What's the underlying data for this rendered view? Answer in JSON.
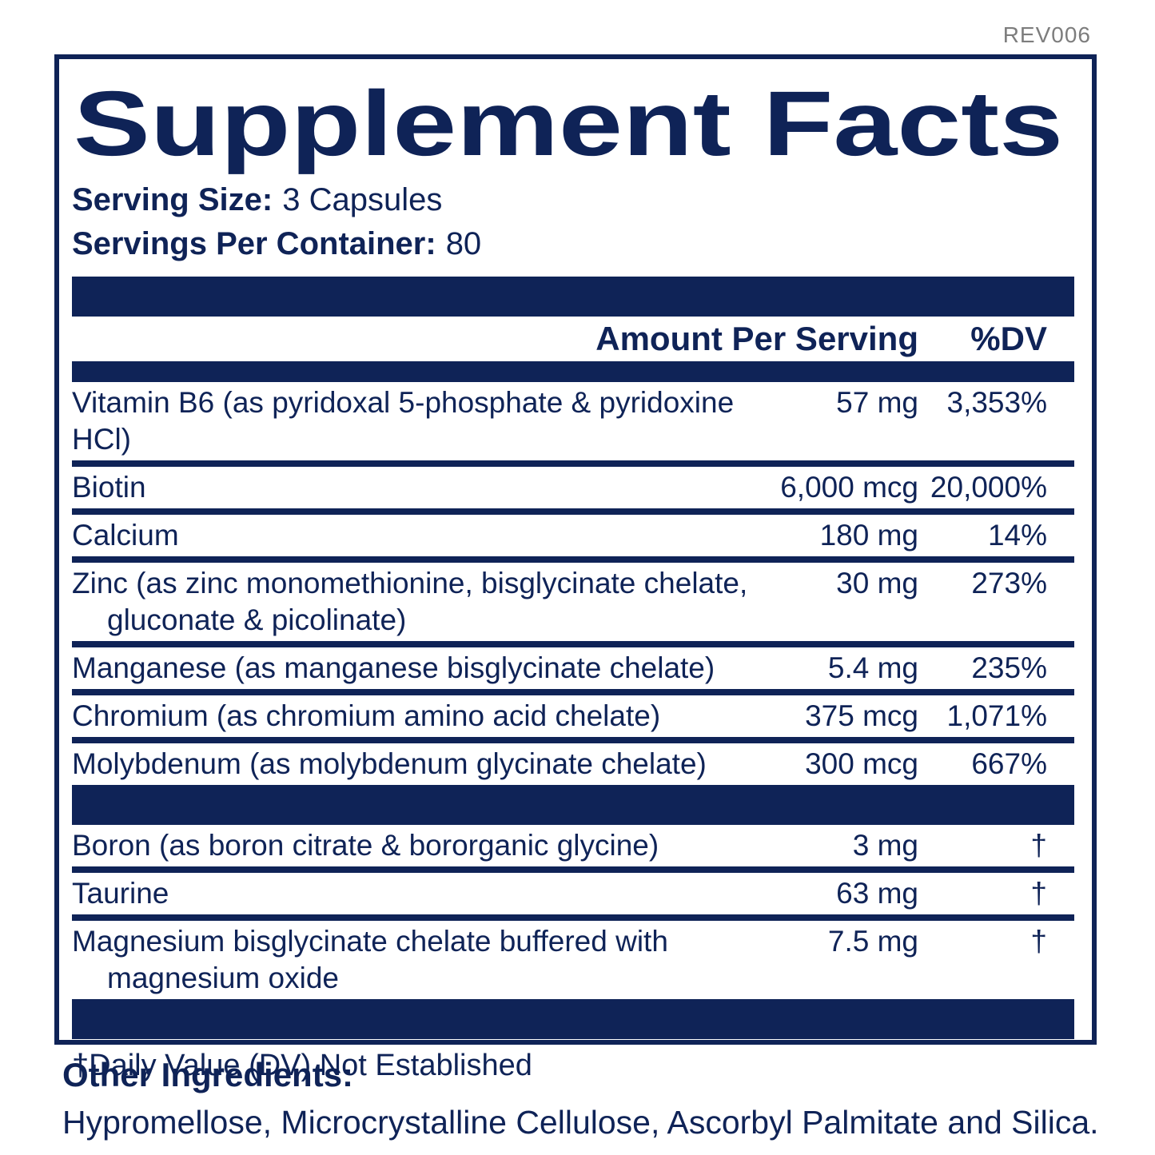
{
  "rev_label": "REV006",
  "colors": {
    "navy": "#0f2357",
    "gray": "#7d7d7d"
  },
  "panel": {
    "title": "Supplement Facts",
    "serving_size_label": "Serving Size:",
    "serving_size_value": "3 Capsules",
    "servings_per_container_label": "Servings Per Container:",
    "servings_per_container_value": "80",
    "columns": {
      "amount_header": "Amount Per Serving",
      "dv_header": "%DV"
    },
    "sections": [
      {
        "rows": [
          {
            "name_lines": [
              "Vitamin B6 (as pyridoxal 5-phosphate & pyridoxine HCl)"
            ],
            "amount": "57 mg",
            "dv": "3,353%"
          },
          {
            "name_lines": [
              "Biotin"
            ],
            "amount": "6,000 mcg",
            "dv": "20,000%"
          },
          {
            "name_lines": [
              "Calcium"
            ],
            "amount": "180 mg",
            "dv": "14%"
          },
          {
            "name_lines": [
              "Zinc (as zinc monomethionine, bisglycinate chelate,",
              "gluconate & picolinate)"
            ],
            "amount": "30 mg",
            "dv": "273%"
          },
          {
            "name_lines": [
              "Manganese (as manganese bisglycinate chelate)"
            ],
            "amount": "5.4 mg",
            "dv": "235%"
          },
          {
            "name_lines": [
              "Chromium (as chromium amino acid chelate)"
            ],
            "amount": "375 mcg",
            "dv": "1,071%"
          },
          {
            "name_lines": [
              "Molybdenum (as molybdenum glycinate chelate)"
            ],
            "amount": "300 mcg",
            "dv": "667%"
          }
        ]
      },
      {
        "rows": [
          {
            "name_lines": [
              "Boron (as boron citrate & bororganic glycine)"
            ],
            "amount": "3 mg",
            "dv": "†"
          },
          {
            "name_lines": [
              "Taurine"
            ],
            "amount": "63 mg",
            "dv": "†"
          },
          {
            "name_lines": [
              "Magnesium bisglycinate chelate buffered with",
              "magnesium oxide"
            ],
            "amount": "7.5 mg",
            "dv": "†"
          }
        ]
      }
    ],
    "footnote": "†Daily Value (DV) Not Established"
  },
  "other_ingredients": {
    "label": "Other Ingredients:",
    "text": "Hypromellose, Microcrystalline Cellulose, Ascorbyl Palmitate and Silica."
  }
}
